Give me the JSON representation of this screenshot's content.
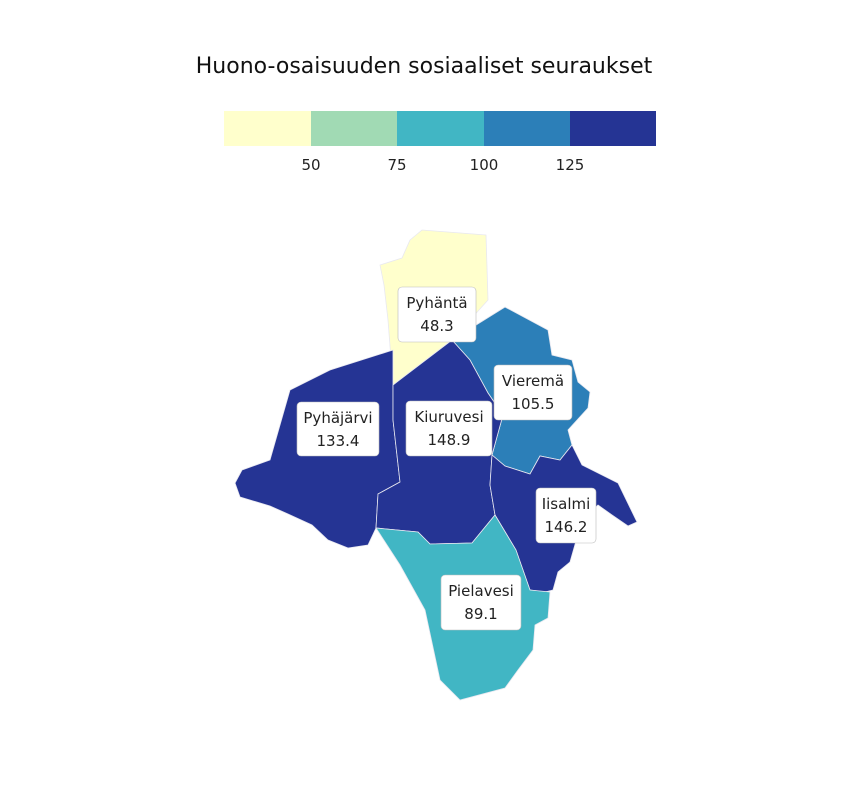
{
  "title": "Huono-osaisuuden sosiaaliset seuraukset",
  "legend": {
    "ticks": [
      "50",
      "75",
      "100",
      "125"
    ],
    "bins": [
      {
        "color": "#ffffcc"
      },
      {
        "color": "#a1dab4"
      },
      {
        "color": "#41b6c4"
      },
      {
        "color": "#2c7fb8"
      },
      {
        "color": "#253494"
      }
    ]
  },
  "regions": [
    {
      "name": "Pyhäntä",
      "value": "48.3",
      "color": "#ffffcc"
    },
    {
      "name": "Vieremä",
      "value": "105.5",
      "color": "#2c7fb8"
    },
    {
      "name": "Pyhäjärvi",
      "value": "133.4",
      "color": "#253494"
    },
    {
      "name": "Kiuruvesi",
      "value": "148.9",
      "color": "#253494"
    },
    {
      "name": "Iisalmi",
      "value": "146.2",
      "color": "#253494"
    },
    {
      "name": "Pielavesi",
      "value": "89.1",
      "color": "#41b6c4"
    }
  ]
}
